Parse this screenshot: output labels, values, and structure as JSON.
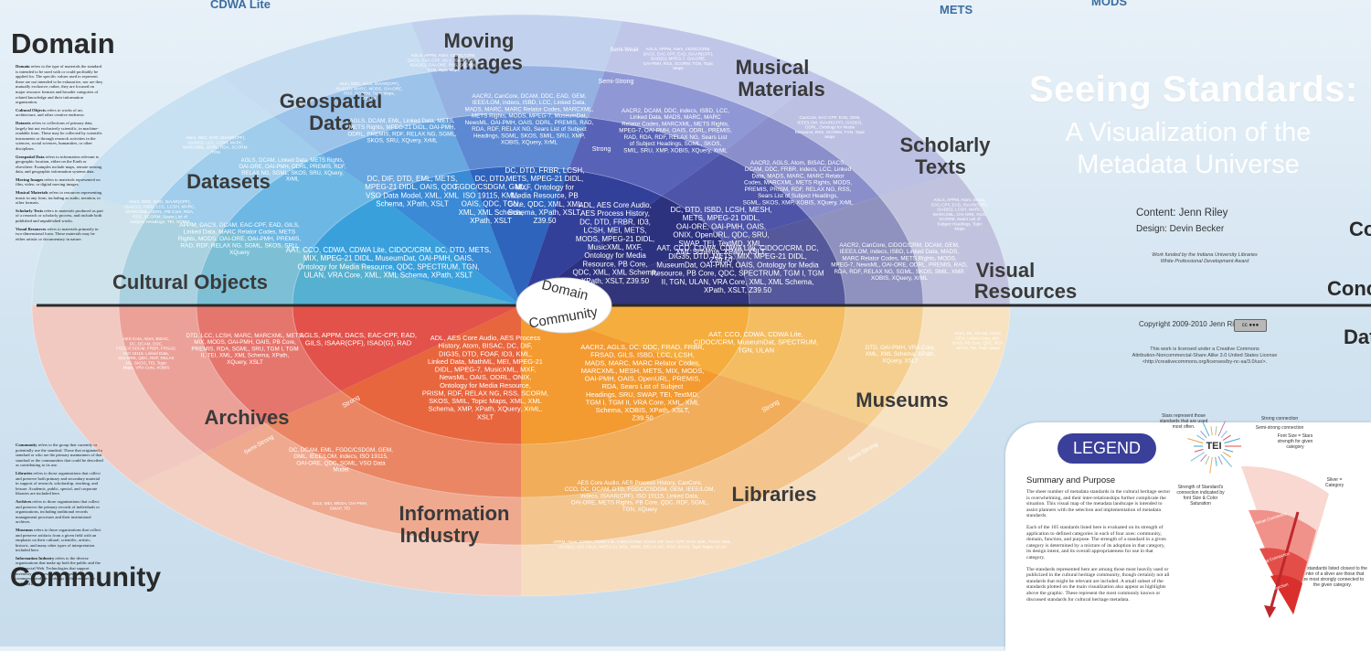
{
  "title": "Seeing Standards:",
  "subtitle_line1": "A Visualization of the",
  "subtitle_line2": "Metadata Universe",
  "content_credit": "Content: Jenn Riley",
  "design_credit": "Design: Devin Becker",
  "funding_line1": "Work funded by the Indiana University Libraries",
  "funding_line2": "White Professional Development Award",
  "copyright": "Copyright 2009-2010 Jenn Riley",
  "license_line1": "This work is licensed under a Creative Commons",
  "license_line2": "Attribution-Noncommercial-Share Alike 3.0 United States License",
  "license_line3": "<http://creativecommons.org/licenses/by-nc-sa/3.0/us/>.",
  "top_labels": {
    "cdwa_lite": "CDWA Lite",
    "mets": "METS",
    "mods": "MODS"
  },
  "right_edge": {
    "co": "Co",
    "conc": "Conc",
    "dat": "Dat"
  },
  "headings": {
    "domain": "Domain",
    "community": "Community"
  },
  "domain_desc": {
    "intro_b": "Domain",
    "intro": " refers to the type of materials the standard is intended to be used with or could profitably be applied for. The specific values used to represent these are not intended to be exhaustive, nor are they mutually exclusive; rather, they are focused on major resource formats and broader categories of related knowledge and their information organization.",
    "cult_b": "Cultural Objects",
    "cult": " refers to works of art, architecture, and other creative endeavor.",
    "data_b": "Datasets",
    "data": " refers to collections of primary data, largely but not exclusively scientific, in machine-readable form. These may be collected by scientific instruments or through research activities in the sciences, social sciences, humanities, or other disciplines.",
    "geo_b": "Geospatial Data",
    "geo": " refers to information relevant to geographic location, either on the Earth or elsewhere. Examples include maps, remote sensing data, and geographic information systems data.",
    "mov_b": "Moving Images",
    "mov": " refers to materials represented on film, video, or digital moving images.",
    "mus_b": "Musical Materials",
    "mus": " refers to resources representing music in any form, including as audio, notation, or other formats.",
    "sch_b": "Scholarly Texts",
    "sch": " refers to materials produced as part of a research or scholarly process, and include both published and unpublished works.",
    "vis_b": "Visual Resources",
    "vis": " refers to materials primarily in two-dimensional form. These materials may be either artistic or documentary in nature."
  },
  "community_desc": {
    "intro_b": "Community",
    "intro": " refers to the group that currently or potentially use the standard. Those that originated a standard or who are the primary maintainers of that standard or the communities that could be described as contributing to its use.",
    "lib_b": "Libraries",
    "lib": " refers to those organizations that collect and preserve both primary and secondary material in support of research, scholarship, teaching, and leisure. Academic, public, special, and corporate libraries are included here.",
    "arc_b": "Archives",
    "arc": " refers to those organizations that collect and preserve the primary records of individuals or organizations, including traditional records management processes and their institutional archives.",
    "mus_b": "Museums",
    "mus": " refers to those organizations that collect and preserve artifacts from a given field with an emphasis on their cultural, scientific, artistic, historic, and many other types of interpretation included here.",
    "ind_b": "Information Industry",
    "ind": " refers to the diverse organizations that make up both the public and the commercial Web. Technologies that support inventory and knowledge management, e-commerce, and the workings of the Internet are included here."
  },
  "domain_sectors": [
    {
      "name": "Cultural Objects",
      "strong": "AAT, CCO, CDWA, CDWA Lite, CIDOC/CRM, DC, DTD, METS, MIX, MPEG-21 DIDL, MuseumDat, OAI-PMH, OAIS, Ontology for Media Resource, QDC, SPECTRUM, TGN, ULAN, VRA Core, XML, XML Schema, XPath, XSLT",
      "mid": "APPM, DACS, DCAM, EAC-CPF, EAD, GILS, Linked Data, MARC Relator Codes, METS Rights, MODS, OAI-ORE, OAI-PMH, PREMIS, RAD, RDF, RELAX NG, SGML, SKOS, SRU, XQuery",
      "weak": "Atom, DDC, EAD, ISAAR(CPF), ISAD(G), ISBD, LCC, LCSH, MARC, MARCXML, ODRL, PB Core, RDA, RSS, SCORM, Sears List of Subject Headings, TEI, XOBIS"
    },
    {
      "name": "Datasets",
      "strong": "DC, DIF, DTD, EML, METS, MPEG-21 DIDL, OAIS, QDC, VSO Data Model, XML, XML Schema, XPath, XSLT",
      "mid": "AGLS, DCAM, Linked Data, METS Rights, OAI-ORE, OAI-PMH, ODRL, PREMIS, RDF, RELAX NG, SGML, SKOS, SRU, XQuery, XrML",
      "weak": "Atom, DDC, EAD, ISAAR(CPF), ISAD(G), LCC, LCSH, MARC, MARCXML, ODRL, RDA, SCORM, TGN"
    },
    {
      "name": "Geospatial Data",
      "strong": "DC, DTD, FGDC/CSDGM, GML, ISO 19115, KML, OAIS, QDC, TGN, XML, XML Schema, XPath, XSLT",
      "mid": "AGLS, DCAM, EML, Linked Data, METS, METS Rights, MPEG-21 DIDL, OAI-PMH, ODRL, PREMIS, RDF, RELAX NG, SGML, SKOS, SRU, XQuery, XrML",
      "weak": "Atom, DDC, GILS, ISAAR(CPF), ISAD(G), MARC, MODS, OAI-ORE, RSS, SCORM, Topic Maps, Z39.50"
    },
    {
      "name": "Moving Images",
      "strong": "DC, DTD, FRBR, LCSH, METS, MPEG-21 DIDL, MXF, Ontology for Media Resource, PB Core, QDC, XML, XML Schema, XPath, XSLT, Z39.50",
      "mid": "AACR2, CanCore, DCAM, DDC, EAD, GEM, IEEE/LOM, indecs, ISBD, LCC, Linked Data, MADS, MARC, MARC Relator Codes, MARCXML, METS Rights, MODS, MPEG-7, MuseumDat, NewsML, OAI-PMH, OAIS, ODRL, PREMIS, RAD, RDA, RDF, RELAX NG, Sears List of Subject Headings, SGML, SKOS, SMIL, SRU, XMP, XOBIS, XQuery, XrML",
      "weak": "AGLS, APPM, Atom, CIDOC/CRM, DACS, EAC-CPF, GILS, ISAAR(CPF), ISAD(G), OAI-ORE, RSS, SCORM, TGN, Topic Maps"
    },
    {
      "name": "Musical Materials",
      "strong": "ADL, AES Core Audio, AES Process History, DC, DTD, FRBR, ID3, LCSH, MEI, METS, MODS, MPEG-21 DIDL, MusicXML, MXF, Ontology for Media Resource, PB Core, QDC, XML, XML Schema, XPath, XSLT, Z39.50",
      "mid": "AACR2, DCAM, DDC, indecs, ISBD, LCC, Linked Data, MADS, MARC, MARC Relator Codes, MARCXML, METS Rights, MPEG-7, OAI-PMH, OAIS, ODRL, PREMIS, RAD, RDA, RDF, RELAX NG, Sears List of Subject Headings, SGML, SKOS, SMIL, SRU, XMP, XOBIS, XQuery, XrML",
      "weak": "AGLS, APPM, Atom, CIDOC/CRM, DACS, EAC-CPF, EAD, ISAAR(CPF), ISAD(G), MPEG-7, OAI-ORE, OAI-PMH, RSS, SCORM, TGN, Topic Maps"
    },
    {
      "name": "Scholarly Texts",
      "strong": "DC, DTD, ISBD, LCSH, MESH, METS, MPEG-21 DIDL, OAI-ORE, OAI-PMH, OAIS, ONIX, OpenURL, QDC, SRU, SWAP, TEI, TextMD, XML, XML Schema, XPath, XSLT, Z39.50",
      "mid": "AACR2, AGLS, Atom, BISAC, DACS, DCAM, DDC, FRBR, indecs, LCC, Linked Data, MADS, MARC, MARC Relator Codes, MARCXML, METS Rights, MODS, PREMIS, PRISM, RDF, RELAX NG, RSS, Sears List of Subject Headings, SGML, SKOS, XMP, XOBIS, XQuery, XrML",
      "weak": "CanCore, EAC-CPF, EAD, GEM, IEEE/LOM, ISAAR(CPF), ISAD(G), ODRL, Ontology for Media Resource, RSS, SCORM, TGN, Topic Maps"
    },
    {
      "name": "Visual Resources",
      "strong": "AAT, CCO, CDWA, CDWA Lite, CIDOC/CRM, DC, DIG35, DTD, METS, MIX, MPEG-21 DIDL, MuseumDat, OAI-PMH, OAIS, Ontology for Media Resource, PB Core, QDC, SPECTRUM, TGM I, TGM II, TGN, ULAN, VRA Core, XML, XML Schema, XPath, XSLT, Z39.50",
      "mid": "AACR2, CanCore, CIDOC/CRM, DCAM, GEM, IEEE/LOM, indecs, ISBD, Linked Data, MADS, MARC Relator Codes, METS Rights, MODS, MPEG-7, NewsML, OAI-ORE, ODRL, PREMIS, RAD, RDA, RDF, RELAX NG, SGML, SKOS, SMIL, XMP, XOBIS, XQuery, XrML",
      "weak": "AGLS, APPM, Atom, DACS, EAC-CPF, EAD, ISAAR(CPF), ISAD(G), LCSH, MARC, MARCXML, OAI-ORE, RSS, SCORM, Sears List of Subject Headings, Topic Maps"
    }
  ],
  "community_sectors": [
    {
      "name": "Archives",
      "strong": "AGLS, APPM, DACS, EAC-CPF, EAD, GILS, ISAAR(CPF), ISAD(G), RAD",
      "mid": "DTD, LCC, LCSH, MARC, MARCXML, METS, MIX, MODS, OAI-PMH, OAIS, PB Core, PREMIS, RDA, SGML, SRU, TGM I, TGM II, TEI, XML, XML Schema, XPath, XQuery, XSLT",
      "weak": "AES Core, Atom, BISAC, DC, DCAM, DDC, FGDC/CSDGM, FRBR, FRSAD, ISO 19115, Linked Data, OAI-ORE, QDC, RDF, RELAX NG, SKOS, TEI, Topic Maps, VRA Core, XOBIS"
    },
    {
      "name": "Information Industry",
      "strong": "ADL, AES Core Audio, AES Process History, Atom, BISAC, DC, DIF, DIG35, DTD, FOAF, ID3, KML, Linked Data, MathML, MEI, MPEG-21 DIDL, MPEG-7, MusicXML, MXF, NewsML, OAIS, ODRL, ONIX, Ontology for Media Resource, PRISM, RDF, RELAX NG, RSS, SCORM, SKOS, SMIL, Topic Maps, XML, XML Schema, XMP, XPath, XQuery, XrML, XSLT",
      "mid": "DC, DCAM, EML, FGDC/CSDGM, GEM, GML, IEEE/LOM, indecs, ISO 19115, OAI-ORE, QDC, SGML, VSO Data Model",
      "weak": "GILS, MEI, MESH, OAI-PMH, SWAP, TEI"
    },
    {
      "name": "Libraries",
      "strong": "AACR2, AGLS, DC, DDC, FRAD, FRBR, FRSAD, GILS, ISBD, LCC, LCSH, MADS, MARC, MARC Relator Codes, MARCXML, MESH, METS, MIX, MODS, OAI-PMH, OAIS, OpenURL, PREMIS, RDA, Sears List of Subject Headings, SRU, SWAP, TEI, TextMD, TGM I, TGM II, VRA Core, XML, XML Schema, XOBIS, XPath, XSLT, Z39.50",
      "mid": "AES Core Audio, AES Process History, CanCore, CCO, DC, DCAM, DTD, FGDC/CSDGM, GEM, IEEE/LOM, indecs, ISAAR(CPF), ISO 19115, Linked Data, OAI-ORE, METS Rights, PB Core, QDC, RDF, SGML, TGN, XQuery",
      "weak": "APPM, Atom, CDWA, CDWA Lite, CIDOC/CRM, DACS, DIF, EAC-CPF, EAD, EML, FOAF, GML, ISAD(G), ISO 19115, MPEG-21 DIDL, ONIX, RELAX NG, RSS, SKOS, Topic Maps, ULAN"
    },
    {
      "name": "Museums",
      "strong": "AAT, CCO, CDWA, CDWA Lite, CIDOC/CRM, MuseumDat, SPECTRUM, TGN, ULAN",
      "mid": "DTD, OAI-PMH, VRA Core, XML, XML Schema, XPath, XQuery, XSLT",
      "weak": "Atom, DC, DCAM, FOAF, GEM, Linked Data, MIX, OAIS, PB Core, QDC, RDF, SKOS, TEI, Topic Maps"
    }
  ],
  "ring_labels": {
    "strong": "Strong",
    "semi_strong": "Semi-Strong",
    "semi_weak": "Semi-Weak"
  },
  "center": {
    "domain": "Domain",
    "community": "Community"
  },
  "legend": {
    "title": "LEGEND",
    "summary_title": "Summary and Purpose",
    "p1": "The sheer number of metadata standards in the cultural heritage sector is overwhelming, and their inter-relationships further complicate the situation. This visual map of the metadata landscape is intended to assist planners with the selection and implementation of metadata standards.",
    "p2": "Each of the 105 standards listed here is evaluated on its strength of application to defined categories in each of four axes: community, domain, function, and purpose. The strength of a standard in a given category is determined by a mixture of its adoption in that category, its design intent, and its overall appropriateness for use in that category.",
    "p3": "The standards represented here are among those most heavily used or publicized in the cultural heritage community, though certainly not all standards that might be relevant are included. A small subset of the standards plotted on the main visualization also appear as highlights above the graphic. These represent the most commonly known or discussed standards for cultural heritage metadata.",
    "stars_note": "Stars represent those standards that are used most often.",
    "tei": "TEI",
    "strong_conn": "Strong connection",
    "semi_strong_conn": "Semi-strong connection",
    "font_size_note": "Font Size = Stars strength for given category",
    "strength_note": "Strength of Standard's connection indicated by font Size & Color Saturation",
    "sliver": "Sliver = Category",
    "closest_note": "The standards listed closest to the center of a sliver are those that are most strongly connected to the given category.",
    "semi_weak": "Semi-Weak Connection",
    "semi_strong": "Semi-Strong Connection",
    "strong": "Strong Connection"
  }
}
